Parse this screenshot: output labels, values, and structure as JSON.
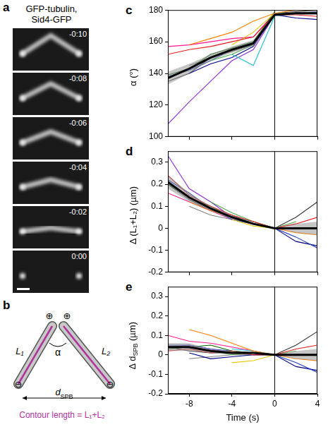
{
  "panel_a": {
    "letter": "a",
    "title": [
      "GFP-tubulin,",
      "Sid4-GFP"
    ],
    "frames": [
      "-0:10",
      "-0:08",
      "-0:06",
      "-0:04",
      "-0:02",
      "0:00"
    ]
  },
  "panel_b": {
    "letter": "b",
    "plus": "⊕",
    "minus": "⊖",
    "L1": "L₁",
    "L2": "L₂",
    "angle": "α",
    "distance": [
      {
        "text": "d"
      },
      {
        "text": "SPB",
        "sub": true
      }
    ],
    "caption": "Contour length = L₁+L₂"
  },
  "chart_data": [
    {
      "type": "line",
      "panel": "c",
      "ylabel": [
        {
          "text": "α (°)"
        }
      ],
      "x": [
        -10,
        -8,
        -6,
        -4,
        -2,
        0,
        2,
        4
      ],
      "xlim": [
        -10,
        4
      ],
      "xticks": [
        -8,
        -4,
        0,
        4
      ],
      "ylim": [
        100,
        180
      ],
      "yticks": [
        100,
        120,
        140,
        160,
        180
      ],
      "tick_labels": "y",
      "vline": 0,
      "series": [
        {
          "color": "#e41a1c",
          "values": [
            152,
            155,
            157,
            160,
            163,
            177,
            177,
            176
          ]
        },
        {
          "color": "#ff7f00",
          "values": [
            null,
            158,
            162,
            166,
            173,
            178,
            180,
            180
          ]
        },
        {
          "color": "#e6c700",
          "values": [
            null,
            null,
            null,
            158,
            166,
            178,
            null,
            null
          ]
        },
        {
          "color": "#4daf4a",
          "values": [
            null,
            null,
            148,
            152,
            158,
            178,
            178,
            null
          ]
        },
        {
          "color": "#006400",
          "values": [
            139,
            143,
            152,
            156,
            160,
            179,
            null,
            null
          ]
        },
        {
          "color": "#17becf",
          "values": [
            null,
            null,
            null,
            152,
            145,
            176,
            null,
            null
          ]
        },
        {
          "color": "#1f3fbf",
          "values": [
            138,
            142,
            148,
            155,
            158,
            178,
            178,
            179
          ]
        },
        {
          "color": "#00008b",
          "values": [
            null,
            140,
            146,
            150,
            157,
            177,
            175,
            174
          ]
        },
        {
          "color": "#8e2bd6",
          "values": [
            108,
            122,
            135,
            148,
            155,
            177,
            null,
            null
          ]
        },
        {
          "color": "#ff1493",
          "values": [
            157,
            158,
            160,
            162,
            163,
            178,
            null,
            null
          ]
        },
        {
          "color": "#808080",
          "values": [
            null,
            145,
            150,
            155,
            158,
            177,
            null,
            null
          ]
        },
        {
          "color": "#333333",
          "values": [
            135,
            140,
            150,
            154,
            158,
            178,
            179,
            180
          ]
        },
        {
          "color": "#000000",
          "values": [
            137,
            143,
            150,
            155,
            159,
            177,
            178,
            178
          ],
          "error": [
            4,
            3,
            2,
            2,
            2,
            1,
            1,
            1
          ]
        }
      ]
    },
    {
      "type": "line",
      "panel": "d",
      "ylabel": [
        {
          "text": "Δ (L₁+L₂) (µm)"
        }
      ],
      "x": [
        -10,
        -8,
        -6,
        -4,
        -2,
        0,
        2,
        4
      ],
      "xlim": [
        -10,
        4
      ],
      "xticks": [
        -8,
        -4,
        0,
        4
      ],
      "ylim": [
        -0.2,
        0.35
      ],
      "yticks": [
        -0.2,
        -0.1,
        0,
        0.1,
        0.2,
        0.3
      ],
      "tick_labels": "y",
      "vline": 0,
      "series": [
        {
          "color": "#e41a1c",
          "values": [
            0.24,
            0.15,
            0.1,
            0.06,
            0.03,
            0,
            0.02,
            0.05
          ]
        },
        {
          "color": "#ff7f00",
          "values": [
            null,
            0.12,
            0.08,
            0.05,
            0.02,
            0,
            -0.02,
            -0.03
          ]
        },
        {
          "color": "#e6c700",
          "values": [
            null,
            null,
            null,
            0.04,
            0.01,
            0,
            null,
            null
          ]
        },
        {
          "color": "#4daf4a",
          "values": [
            null,
            null,
            0.12,
            0.07,
            0.03,
            0,
            0.03,
            null
          ]
        },
        {
          "color": "#006400",
          "values": [
            0.2,
            0.14,
            0.1,
            0.05,
            0.02,
            0,
            null,
            null
          ]
        },
        {
          "color": "#17becf",
          "values": [
            null,
            null,
            null,
            0.05,
            0.03,
            0,
            null,
            null
          ]
        },
        {
          "color": "#1f3fbf",
          "values": [
            0.22,
            0.16,
            0.09,
            0.04,
            0.02,
            0,
            -0.04,
            -0.09
          ]
        },
        {
          "color": "#00008b",
          "values": [
            null,
            0.14,
            0.09,
            0.05,
            0.02,
            0,
            -0.06,
            -0.08
          ]
        },
        {
          "color": "#8e2bd6",
          "values": [
            0.33,
            0.18,
            0.12,
            0.05,
            0.02,
            0,
            null,
            null
          ]
        },
        {
          "color": "#ff1493",
          "values": [
            0.16,
            0.12,
            0.08,
            0.04,
            0.02,
            0,
            null,
            null
          ]
        },
        {
          "color": "#808080",
          "values": [
            null,
            0.1,
            0.06,
            0.04,
            0.02,
            0,
            null,
            null
          ]
        },
        {
          "color": "#333333",
          "values": [
            0.2,
            0.13,
            0.08,
            0.06,
            0.02,
            0,
            0.05,
            0.12
          ]
        },
        {
          "color": "#000000",
          "values": [
            0.21,
            0.14,
            0.09,
            0.05,
            0.02,
            0,
            0,
            0
          ],
          "error": [
            0.03,
            0.02,
            0.01,
            0.01,
            0.005,
            0,
            0.02,
            0.03
          ]
        }
      ]
    },
    {
      "type": "line",
      "panel": "e",
      "ylabel": [
        {
          "text": "Δ d"
        },
        {
          "text": "SPB",
          "sub": true
        },
        {
          "text": " (µm)"
        }
      ],
      "xlabel": "Time (s)",
      "x": [
        -10,
        -8,
        -6,
        -4,
        -2,
        0,
        2,
        4
      ],
      "xlim": [
        -10,
        4
      ],
      "xticks": [
        -8,
        -4,
        0,
        4
      ],
      "ylim": [
        -0.2,
        0.35
      ],
      "yticks": [
        -0.2,
        -0.1,
        0,
        0.1,
        0.2,
        0.3
      ],
      "vline": 0,
      "series": [
        {
          "color": "#e41a1c",
          "values": [
            0.02,
            0.03,
            0.01,
            0.02,
            0,
            0,
            0.03,
            0.05
          ]
        },
        {
          "color": "#ff7f00",
          "values": [
            null,
            0.13,
            0.1,
            0.06,
            0.02,
            0,
            -0.02,
            -0.03
          ]
        },
        {
          "color": "#e6c700",
          "values": [
            null,
            null,
            null,
            -0.04,
            -0.03,
            0,
            null,
            null
          ]
        },
        {
          "color": "#4daf4a",
          "values": [
            null,
            null,
            0.02,
            0,
            0.01,
            0,
            0.02,
            null
          ]
        },
        {
          "color": "#006400",
          "values": [
            0.03,
            0.04,
            0.05,
            0.02,
            0.01,
            0,
            null,
            null
          ]
        },
        {
          "color": "#17becf",
          "values": [
            null,
            null,
            null,
            0.03,
            0.02,
            0,
            null,
            null
          ]
        },
        {
          "color": "#1f3fbf",
          "values": [
            0.05,
            0.05,
            0.03,
            0.02,
            0.01,
            0,
            -0.04,
            -0.09
          ]
        },
        {
          "color": "#00008b",
          "values": [
            null,
            0.01,
            -0.02,
            -0.01,
            0,
            0,
            -0.06,
            -0.08
          ]
        },
        {
          "color": "#8e2bd6",
          "values": [
            0.04,
            0.05,
            0.03,
            0.01,
            0.01,
            0,
            null,
            null
          ]
        },
        {
          "color": "#ff1493",
          "values": [
            0.1,
            0.07,
            0.06,
            0.04,
            0.02,
            0,
            null,
            null
          ]
        },
        {
          "color": "#808080",
          "values": [
            null,
            -0.02,
            -0.01,
            0,
            0,
            0,
            null,
            null
          ]
        },
        {
          "color": "#333333",
          "values": [
            0.04,
            0.02,
            0.01,
            0.01,
            0,
            0,
            0.05,
            0.12
          ]
        },
        {
          "color": "#000000",
          "values": [
            0.04,
            0.04,
            0.02,
            0.01,
            0.01,
            0,
            0,
            0
          ],
          "error": [
            0.02,
            0.02,
            0.01,
            0.01,
            0.005,
            0,
            0.02,
            0.03
          ]
        }
      ]
    }
  ]
}
